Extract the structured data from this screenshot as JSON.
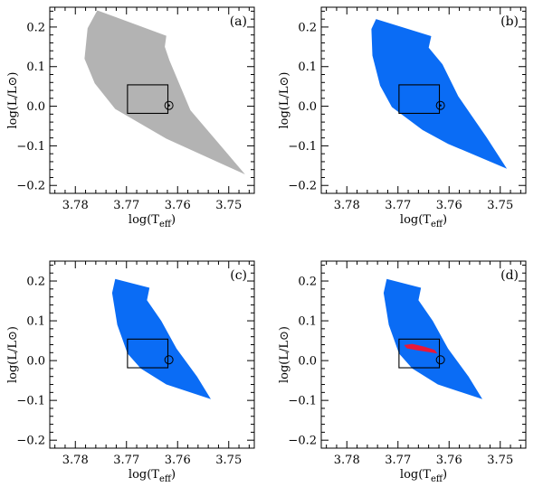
{
  "chart_data": [
    {
      "type": "area",
      "panel_label": "(a)",
      "xlabel": "log(Teff)",
      "ylabel": "log(L/L⊙)",
      "xlim": [
        3.785,
        3.745
      ],
      "ylim": [
        -0.22,
        0.25
      ],
      "x_ticks": [
        {
          "value": 3.78,
          "label": "3.78"
        },
        {
          "value": 3.77,
          "label": "3.77"
        },
        {
          "value": 3.76,
          "label": "3.76"
        },
        {
          "value": 3.75,
          "label": "3.75"
        }
      ],
      "y_ticks": [
        {
          "value": 0.2,
          "label": "0.2"
        },
        {
          "value": 0.1,
          "label": "0.1"
        },
        {
          "value": 0.0,
          "label": "0.0"
        },
        {
          "value": -0.1,
          "label": "−0.1"
        },
        {
          "value": -0.2,
          "label": "−0.2"
        }
      ],
      "region_color": "#b3b3b3",
      "region": [
        [
          3.7757,
          0.242
        ],
        [
          3.7622,
          0.178
        ],
        [
          3.7625,
          0.15
        ],
        [
          3.7616,
          0.116
        ],
        [
          3.7575,
          -0.01
        ],
        [
          3.7468,
          -0.172
        ],
        [
          3.7622,
          -0.082
        ],
        [
          3.7722,
          -0.007
        ],
        [
          3.7762,
          0.058
        ],
        [
          3.7782,
          0.12
        ],
        [
          3.7776,
          0.197
        ]
      ],
      "inner_region": null,
      "box": {
        "x": [
          3.7698,
          3.7619
        ],
        "y": [
          -0.018,
          0.054
        ]
      },
      "sun": {
        "x": 3.7617,
        "y": 0.002,
        "dot": true
      }
    },
    {
      "type": "area",
      "panel_label": "(b)",
      "xlabel": "log(Teff)",
      "ylabel": "log(L/L⊙)",
      "xlim": [
        3.785,
        3.745
      ],
      "ylim": [
        -0.22,
        0.25
      ],
      "x_ticks": [
        {
          "value": 3.78,
          "label": "3.78"
        },
        {
          "value": 3.77,
          "label": "3.77"
        },
        {
          "value": 3.76,
          "label": "3.76"
        },
        {
          "value": 3.75,
          "label": "3.75"
        }
      ],
      "y_ticks": [
        {
          "value": 0.2,
          "label": "0.2"
        },
        {
          "value": 0.1,
          "label": "0.1"
        },
        {
          "value": 0.0,
          "label": "0.0"
        },
        {
          "value": -0.1,
          "label": "−0.1"
        },
        {
          "value": -0.2,
          "label": "−0.2"
        }
      ],
      "region_color": "#0a6cf5",
      "region": [
        [
          3.7743,
          0.22
        ],
        [
          3.7635,
          0.177
        ],
        [
          3.764,
          0.148
        ],
        [
          3.7613,
          0.106
        ],
        [
          3.7582,
          0.025
        ],
        [
          3.7527,
          -0.078
        ],
        [
          3.7487,
          -0.158
        ],
        [
          3.7602,
          -0.095
        ],
        [
          3.7652,
          -0.06
        ],
        [
          3.7712,
          -0.002
        ],
        [
          3.7735,
          0.052
        ],
        [
          3.775,
          0.128
        ],
        [
          3.7752,
          0.195
        ]
      ],
      "inner_region": null,
      "box": {
        "x": [
          3.7698,
          3.7619
        ],
        "y": [
          -0.018,
          0.054
        ]
      },
      "sun": {
        "x": 3.7617,
        "y": 0.002,
        "dot": true
      }
    },
    {
      "type": "area",
      "panel_label": "(c)",
      "xlabel": "log(Teff)",
      "ylabel": "log(L/L⊙)",
      "xlim": [
        3.785,
        3.745
      ],
      "ylim": [
        -0.22,
        0.25
      ],
      "x_ticks": [
        {
          "value": 3.78,
          "label": "3.78"
        },
        {
          "value": 3.77,
          "label": "3.77"
        },
        {
          "value": 3.76,
          "label": "3.76"
        },
        {
          "value": 3.75,
          "label": "3.75"
        }
      ],
      "y_ticks": [
        {
          "value": 0.2,
          "label": "0.2"
        },
        {
          "value": 0.1,
          "label": "0.1"
        },
        {
          "value": 0.0,
          "label": "0.0"
        },
        {
          "value": -0.1,
          "label": "−0.1"
        },
        {
          "value": -0.2,
          "label": "−0.2"
        }
      ],
      "region_color": "#0a6cf5",
      "region": [
        [
          3.7722,
          0.205
        ],
        [
          3.7655,
          0.183
        ],
        [
          3.766,
          0.152
        ],
        [
          3.7632,
          0.1
        ],
        [
          3.7602,
          0.03
        ],
        [
          3.7562,
          -0.04
        ],
        [
          3.7535,
          -0.097
        ],
        [
          3.7622,
          -0.06
        ],
        [
          3.7672,
          -0.02
        ],
        [
          3.7698,
          0.018
        ],
        [
          3.7718,
          0.09
        ],
        [
          3.7728,
          0.17
        ]
      ],
      "inner_region": null,
      "box": {
        "x": [
          3.7698,
          3.7619
        ],
        "y": [
          -0.018,
          0.054
        ]
      },
      "sun": {
        "x": 3.7617,
        "y": 0.002,
        "dot": false
      }
    },
    {
      "type": "area",
      "panel_label": "(d)",
      "xlabel": "log(Teff)",
      "ylabel": "log(L/L⊙)",
      "xlim": [
        3.785,
        3.745
      ],
      "ylim": [
        -0.22,
        0.25
      ],
      "x_ticks": [
        {
          "value": 3.78,
          "label": "3.78"
        },
        {
          "value": 3.77,
          "label": "3.77"
        },
        {
          "value": 3.76,
          "label": "3.76"
        },
        {
          "value": 3.75,
          "label": "3.75"
        }
      ],
      "y_ticks": [
        {
          "value": 0.2,
          "label": "0.2"
        },
        {
          "value": 0.1,
          "label": "0.1"
        },
        {
          "value": 0.0,
          "label": "0.0"
        },
        {
          "value": -0.1,
          "label": "−0.1"
        },
        {
          "value": -0.2,
          "label": "−0.2"
        }
      ],
      "region_color": "#0a6cf5",
      "region": [
        [
          3.7722,
          0.205
        ],
        [
          3.7655,
          0.183
        ],
        [
          3.766,
          0.152
        ],
        [
          3.7632,
          0.1
        ],
        [
          3.7602,
          0.03
        ],
        [
          3.7562,
          -0.04
        ],
        [
          3.7535,
          -0.097
        ],
        [
          3.7622,
          -0.06
        ],
        [
          3.7672,
          -0.02
        ],
        [
          3.7698,
          0.018
        ],
        [
          3.7718,
          0.09
        ],
        [
          3.7728,
          0.17
        ]
      ],
      "inner_region_color": "#e8183a",
      "inner_region": [
        [
          3.7688,
          0.039
        ],
        [
          3.7672,
          0.042
        ],
        [
          3.7648,
          0.035
        ],
        [
          3.7628,
          0.027
        ],
        [
          3.7623,
          0.018
        ],
        [
          3.7638,
          0.021
        ],
        [
          3.7662,
          0.026
        ],
        [
          3.7683,
          0.031
        ]
      ],
      "box": {
        "x": [
          3.7698,
          3.7619
        ],
        "y": [
          -0.018,
          0.054
        ]
      },
      "sun": {
        "x": 3.7617,
        "y": 0.002,
        "dot": false
      }
    }
  ]
}
